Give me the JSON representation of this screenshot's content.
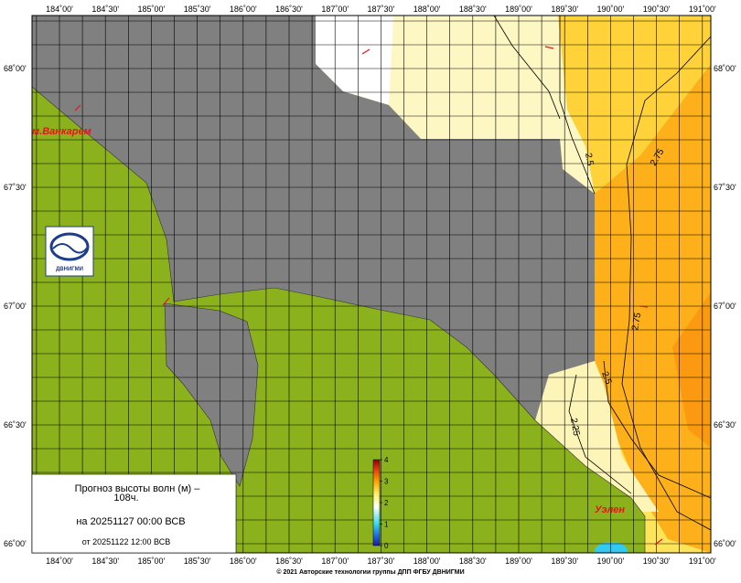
{
  "axes": {
    "top": [
      "184˚00'",
      "184˚30'",
      "185˚00'",
      "185˚30'",
      "186˚00'",
      "186˚30'",
      "187˚00'",
      "187˚30'",
      "188˚00'",
      "188˚30'",
      "189˚00'",
      "189˚30'",
      "190˚00'",
      "190˚30'",
      "191˚00'"
    ],
    "bottom": [
      "184˚00'",
      "184˚30'",
      "185˚00'",
      "185˚30'",
      "186˚00'",
      "186˚30'",
      "187˚00'",
      "187˚30'",
      "188˚00'",
      "188˚30'",
      "189˚00'",
      "189˚30'",
      "190˚00'",
      "190˚30'",
      "191˚00'"
    ],
    "left": [
      "68˚00'",
      "67˚30'",
      "67˚00'",
      "66˚30'",
      "66˚00'"
    ],
    "right": [
      "68˚00'",
      "67˚30'",
      "67˚00'",
      "66˚30'",
      "66˚00'"
    ]
  },
  "places": [
    "м.Ванкарем",
    "Уэлен"
  ],
  "contour_labels": [
    "2.5",
    "2.75",
    "2.75",
    "2.5",
    "2.25"
  ],
  "colorbar": {
    "ticks": [
      0,
      1,
      2,
      3,
      4
    ]
  },
  "legend": {
    "title": "Прогноз высоты волн (м) –",
    "lead": "108ч.",
    "valid": "на 20251127 00:00 ВСВ",
    "issued": "от 20251122 12:00 ВСВ"
  },
  "logo": "ДВНИГМИ",
  "footer": "© 2021 Авторские технологии группы ДПП ФГБУ ДВНИГМИ"
}
